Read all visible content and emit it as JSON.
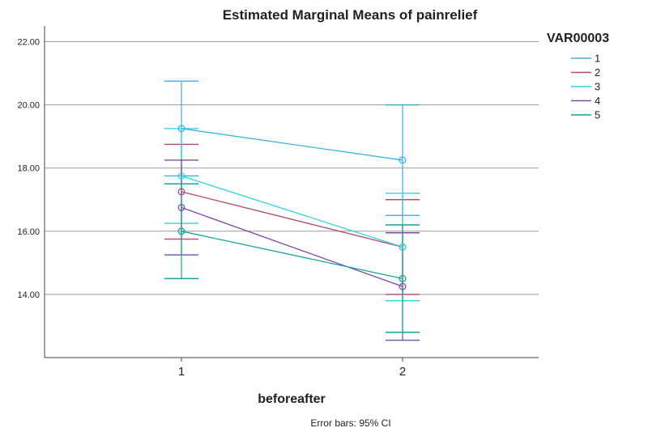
{
  "chart_data": {
    "type": "line",
    "title": "Estimated Marginal Means of painrelief",
    "xlabel": "beforeafter",
    "ylabel": "",
    "categories": [
      "1",
      "2"
    ],
    "yticks": [
      "14.00",
      "16.00",
      "18.00",
      "20.00",
      "22.00"
    ],
    "ylim": [
      12.0,
      22.5
    ],
    "grid": true,
    "legend": {
      "title": "VAR00003",
      "position": "right"
    },
    "note": "Error bars: 95% CI",
    "series": [
      {
        "name": "1",
        "color": "#38b4dc",
        "values": [
          19.25,
          18.25
        ],
        "ci_low": [
          17.75,
          16.5
        ],
        "ci_high": [
          20.75,
          20.0
        ]
      },
      {
        "name": "2",
        "color": "#b8466e",
        "values": [
          17.25,
          15.5
        ],
        "ci_low": [
          15.75,
          14.0
        ],
        "ci_high": [
          18.75,
          17.0
        ]
      },
      {
        "name": "3",
        "color": "#2ed3e0",
        "values": [
          17.75,
          15.5
        ],
        "ci_low": [
          16.25,
          13.8
        ],
        "ci_high": [
          19.25,
          17.2
        ]
      },
      {
        "name": "4",
        "color": "#7b4ba8",
        "values": [
          16.75,
          14.25
        ],
        "ci_low": [
          15.25,
          12.55
        ],
        "ci_high": [
          18.25,
          15.95
        ]
      },
      {
        "name": "5",
        "color": "#14a39a",
        "values": [
          16.0,
          14.5
        ],
        "ci_low": [
          14.5,
          12.8
        ],
        "ci_high": [
          17.5,
          16.2
        ]
      }
    ]
  }
}
